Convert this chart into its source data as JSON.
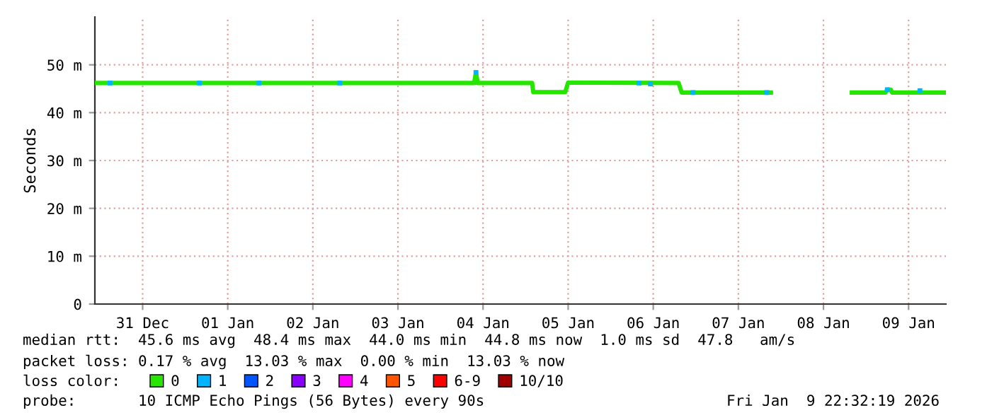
{
  "chart_data": {
    "type": "line",
    "ylabel": "Seconds",
    "xlim": [
      "2025-12-30T22:32",
      "2026-01-09T22:32"
    ],
    "xticks": [
      {
        "value": "2025-12-31T12:00",
        "label": "31 Dec"
      },
      {
        "value": "2026-01-01T12:00",
        "label": "01 Jan"
      },
      {
        "value": "2026-01-02T12:00",
        "label": "02 Jan"
      },
      {
        "value": "2026-01-03T12:00",
        "label": "03 Jan"
      },
      {
        "value": "2026-01-04T12:00",
        "label": "04 Jan"
      },
      {
        "value": "2026-01-05T12:00",
        "label": "05 Jan"
      },
      {
        "value": "2026-01-06T12:00",
        "label": "06 Jan"
      },
      {
        "value": "2026-01-07T12:00",
        "label": "07 Jan"
      },
      {
        "value": "2026-01-08T12:00",
        "label": "08 Jan"
      },
      {
        "value": "2026-01-09T12:00",
        "label": "09 Jan"
      }
    ],
    "ylim": [
      0,
      60
    ],
    "yticks": [
      0,
      {
        "value": 10,
        "label": "10 m"
      },
      {
        "value": 20,
        "label": "20 m"
      },
      {
        "value": 30,
        "label": "30 m"
      },
      {
        "value": 40,
        "label": "40 m"
      },
      {
        "value": 50,
        "label": "50 m"
      }
    ],
    "grid": true,
    "legend": "bottom left",
    "legend_title": "loss color:",
    "series": [
      {
        "name": "0",
        "color": "#26e600",
        "x": [
          "2025-12-30T22:40",
          "2026-01-04T09:30",
          "2026-01-04T10:00",
          "2026-01-04T10:30",
          "2026-01-05T01:50",
          "2026-01-05T02:10",
          "2026-01-05T11:10",
          "2026-01-05T12:00",
          "2026-01-06T19:10",
          "2026-01-06T20:00",
          "2026-01-07T21:10",
          "2026-01-08T08:00",
          "2026-01-08T20:00",
          "2026-01-09T05:30",
          "2026-01-09T06:00",
          "2026-01-09T07:00",
          "2026-01-09T07:20",
          "2026-01-09T22:00"
        ],
        "values": [
          46.2,
          46.2,
          48.4,
          46.2,
          46.2,
          44.3,
          44.3,
          46.3,
          46.2,
          44.2,
          44.2,
          null,
          44.2,
          44.2,
          44.8,
          44.8,
          44.2,
          44.2
        ]
      },
      {
        "name": "1",
        "color": "#00b4ff",
        "type": "scatter",
        "x": [
          "2025-12-31T02:48",
          "2026-01-01T04:00",
          "2026-01-01T20:48",
          "2026-01-02T19:36",
          "2026-01-04T10:00",
          "2026-01-06T08:00",
          "2026-01-06T11:12",
          "2026-01-06T23:12",
          "2026-01-07T20:00",
          "2026-01-09T06:00",
          "2026-01-09T15:12"
        ],
        "values": [
          46.2,
          46.2,
          46.2,
          46.2,
          48.4,
          46.2,
          46.0,
          44.2,
          44.2,
          44.8,
          44.6
        ]
      },
      {
        "name": "2",
        "color": "#0055ff",
        "type": "scatter"
      },
      {
        "name": "3",
        "color": "#8a00ff",
        "type": "scatter"
      },
      {
        "name": "4",
        "color": "#ff00ff",
        "type": "scatter"
      },
      {
        "name": "5",
        "color": "#ff5500",
        "type": "scatter"
      },
      {
        "name": "6-9",
        "color": "#ff0000",
        "type": "scatter"
      },
      {
        "name": "10/10",
        "color": "#a10000",
        "type": "scatter"
      }
    ],
    "annotations": [
      "median rtt:  45.6 ms avg  48.4 ms max  44.0 ms min  44.8 ms now  1.0 ms sd  47.8   am/s",
      "packet loss: 0.17 % avg  13.03 % max  0.00 % min  13.03 % now",
      "probe:       10 ICMP Echo Pings (56 Bytes) every 90s",
      "Fri Jan  9 22:32:19 2026"
    ]
  }
}
